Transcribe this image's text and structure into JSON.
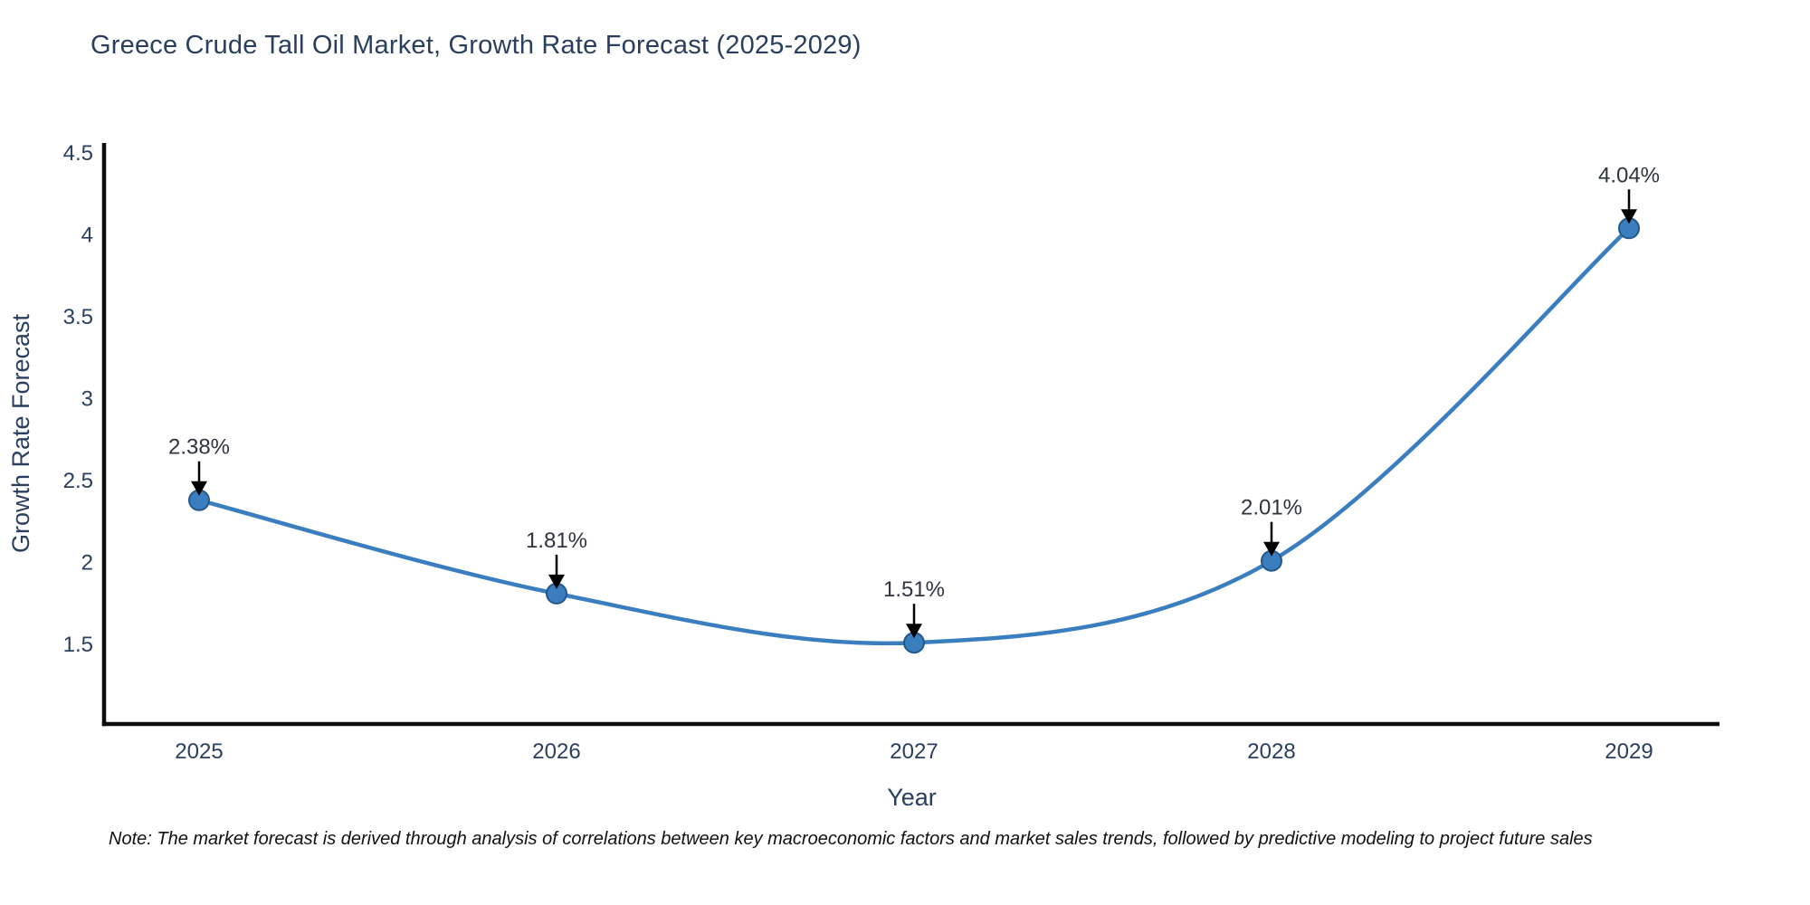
{
  "page": {
    "title": "Greece Crude Tall Oil Market, Growth Rate Forecast (2025-2029)",
    "note": "Note: The market forecast is derived through analysis of correlations between key macroeconomic factors and market sales trends, followed by predictive modeling to project future sales"
  },
  "chart_data": {
    "type": "line",
    "title": "Greece Crude Tall Oil Market, Growth Rate Forecast (2025-2029)",
    "categories": [
      "2025",
      "2026",
      "2027",
      "2028",
      "2029"
    ],
    "series": [
      {
        "name": "Growth Rate Forecast",
        "values": [
          2.38,
          1.81,
          1.51,
          2.01,
          4.04
        ]
      }
    ],
    "point_labels": [
      "2.38%",
      "1.81%",
      "1.51%",
      "2.01%",
      "4.04%"
    ],
    "xlabel": "Year",
    "ylabel": "Growth Rate Forecast",
    "ytick_values": [
      1.5,
      2,
      2.5,
      3,
      3.5,
      4,
      4.5
    ],
    "ytick_labels": [
      "1.5",
      "2",
      "2.5",
      "3",
      "3.5",
      "4",
      "4.5"
    ],
    "ylim": [
      1.01,
      4.56
    ],
    "line_shape": "spline",
    "grid": false,
    "legend": "none",
    "colors": {
      "line": "#3a7ebf",
      "marker_fill": "#3a7ebf",
      "marker_edge": "#24588c",
      "axis": "#0d0d0d",
      "tick_text": "#2a3f5f",
      "annotation_text": "#2e3440",
      "arrow": "#000000"
    }
  }
}
